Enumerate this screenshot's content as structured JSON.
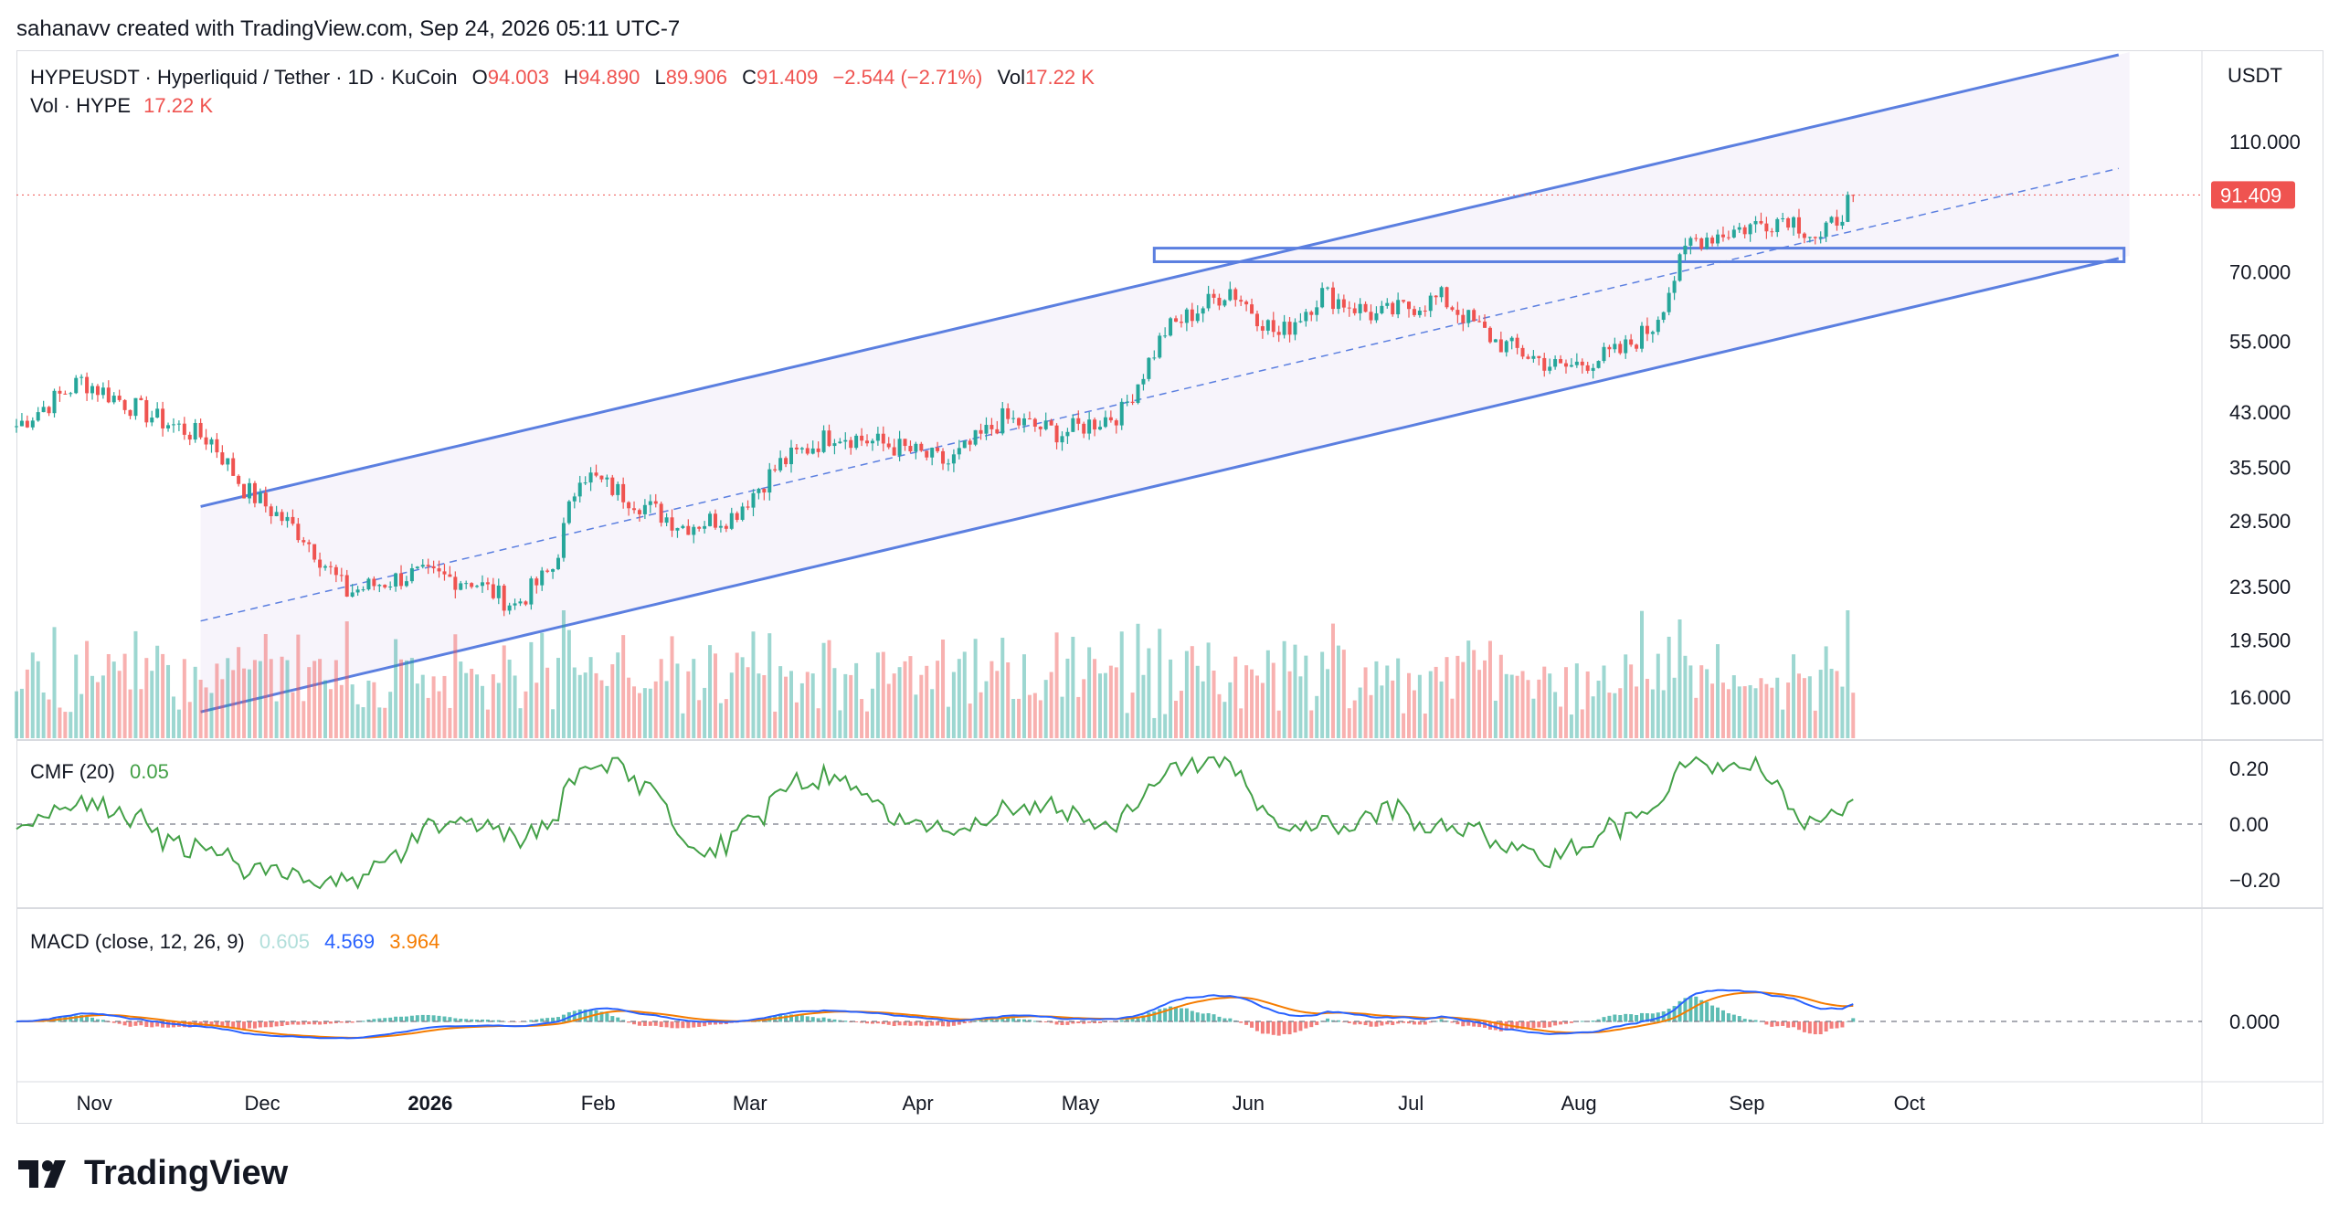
{
  "header": "sahanavv created with TradingView.com, Sep 24, 2026 05:11 UTC-7",
  "legend": {
    "symbol": "HYPEUSDT · Hyperliquid / Tether · 1D · KuCoin",
    "o_label": "O",
    "o": "94.003",
    "h_label": "H",
    "h": "94.890",
    "l_label": "L",
    "l": "89.906",
    "c_label": "C",
    "c": "91.409",
    "change": "−2.544 (−2.71%)",
    "vol_label": "Vol",
    "vol": "17.22 K",
    "vol2_label": "Vol · HYPE",
    "vol2": "17.22 K"
  },
  "cmf": {
    "label": "CMF (20)",
    "value": "0.05"
  },
  "macd": {
    "label": "MACD (close, 12, 26, 9)",
    "hist": "0.605",
    "macd": "4.569",
    "signal": "3.964"
  },
  "currency": "USDT",
  "brand": "TradingView",
  "colors": {
    "up": "#26a69a",
    "down": "#ef5350",
    "channel": "#5b7fe0",
    "cmf": "#43a047",
    "macd": "#2962ff",
    "signal": "#f57c00"
  },
  "chart_data": {
    "type": "candlestick",
    "price_axis": {
      "scale": "log",
      "ticks": [
        "110.000",
        "70.000",
        "55.000",
        "43.000",
        "35.500",
        "29.500",
        "23.500",
        "19.500",
        "16.000"
      ],
      "last_price": "91.409"
    },
    "cmf_axis": {
      "ticks": [
        "0.20",
        "0.00",
        "−0.20"
      ]
    },
    "macd_axis": {
      "ticks": [
        "0.000"
      ]
    },
    "time_axis": [
      "Nov",
      "Dec",
      "2026",
      "Feb",
      "Mar",
      "Apr",
      "May",
      "Jun",
      "Jul",
      "Aug",
      "Sep",
      "Oct"
    ],
    "price_path": {
      "dates": [
        "Oct 20",
        "Nov 1",
        "Nov 15",
        "Nov 25",
        "Dec 1",
        "Dec 12",
        "Dec 20",
        "Jan 1",
        "Jan 12",
        "Jan 20",
        "Jan 27",
        "Feb 1",
        "Feb 10",
        "Feb 20",
        "Mar 1",
        "Mar 10",
        "Mar 20",
        "Apr 1",
        "Apr 10",
        "Apr 20",
        "May 1",
        "May 12",
        "May 20",
        "Jun 1",
        "Jun 10",
        "Jun 18",
        "Jun 28",
        "Jul 10",
        "Jul 20",
        "Aug 1",
        "Aug 12",
        "Aug 18",
        "Aug 25",
        "Sep 5",
        "Sep 12",
        "Sep 18",
        "Sep 24"
      ],
      "close": [
        41,
        48,
        42,
        39,
        33,
        28,
        23,
        24.5,
        24,
        22,
        25,
        35,
        32,
        29,
        30,
        36,
        40,
        38,
        36,
        42,
        40,
        43,
        57,
        66,
        56,
        65,
        60,
        64,
        55,
        50,
        53,
        58,
        78,
        82,
        85,
        78,
        91.4
      ]
    },
    "annotations": [
      "ascending channel",
      "horizontal resistance box ~72-74",
      "midline dashed"
    ]
  }
}
